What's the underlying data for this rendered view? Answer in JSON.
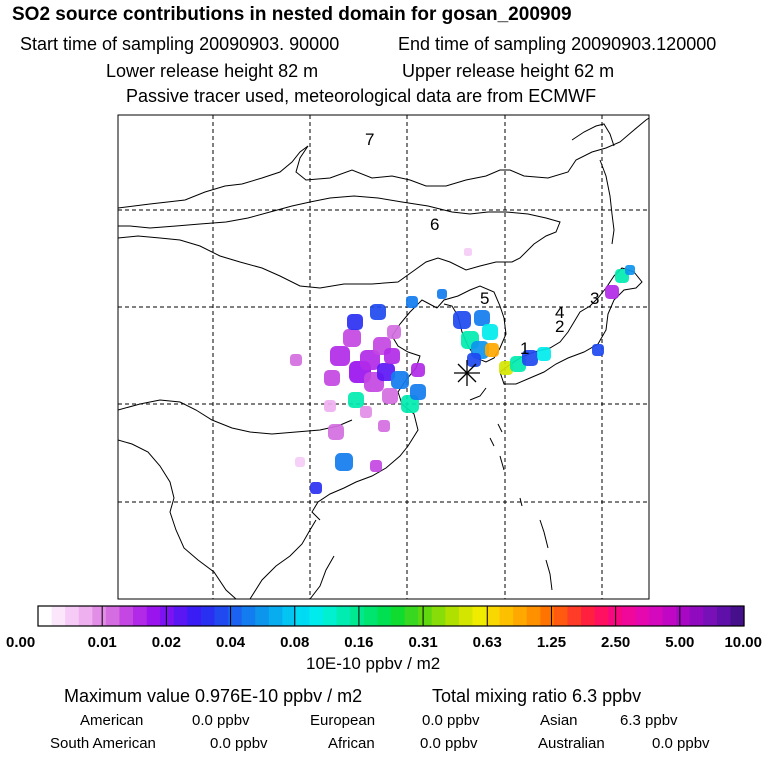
{
  "header": {
    "title": "SO2 source contributions in nested domain for gosan_200909",
    "start_time": "Start time of sampling 20090903. 90000",
    "end_time": "End time of sampling 20090903.120000",
    "lower_release": "Lower release height   82 m",
    "upper_release": "Upper release height   62 m",
    "tracer_note": "Passive tracer used, meteorological data are from ECMWF"
  },
  "map": {
    "region_labels": [
      "7",
      "6",
      "5",
      "4",
      "2",
      "3",
      "1"
    ],
    "receptor_marker": "asterisk"
  },
  "colorbar": {
    "tick_labels": [
      "0.00",
      "0.01",
      "0.02",
      "0.04",
      "0.08",
      "0.16",
      "0.31",
      "0.63",
      "1.25",
      "2.50",
      "5.00",
      "10.00"
    ],
    "colors": [
      "#ffffff",
      "#fbe6fb",
      "#f6ccf6",
      "#efb0f0",
      "#e28ee6",
      "#d46ee0",
      "#c447e3",
      "#b22ae8",
      "#9a14ee",
      "#7d12f2",
      "#5b16f4",
      "#3a1cf4",
      "#2a30f2",
      "#2049f0",
      "#1a62ef",
      "#137cee",
      "#0d95ee",
      "#08adf0",
      "#04c4f2",
      "#00dbf4",
      "#00ecec",
      "#00f0d0",
      "#00ecb0",
      "#00e890",
      "#00e470",
      "#00e050",
      "#10dc30",
      "#38d820",
      "#60d810",
      "#88dc08",
      "#b0e000",
      "#d4e600",
      "#f0ec00",
      "#f8d800",
      "#fcc000",
      "#ffa800",
      "#ff9000",
      "#ff7400",
      "#ff5a10",
      "#ff3c28",
      "#ff2040",
      "#ff1060",
      "#f80880",
      "#f0089a",
      "#e408ae",
      "#d408bc",
      "#c008c4",
      "#a808c4",
      "#900ac0",
      "#7810b8",
      "#5e10a8",
      "#46108c"
    ],
    "units": "10E-10 ppbv / m2"
  },
  "summary": {
    "max_value": "Maximum value  0.976E-10 ppbv / m2",
    "total_mixing": "Total mixing ratio       6.3 ppbv",
    "rows": [
      [
        {
          "label": "American",
          "value": "0.0 ppbv"
        },
        {
          "label": "European",
          "value": "0.0 ppbv"
        },
        {
          "label": "Asian",
          "value": "6.3 ppbv"
        }
      ],
      [
        {
          "label": "South American",
          "value": "0.0 ppbv"
        },
        {
          "label": "African",
          "value": "0.0 ppbv"
        },
        {
          "label": "Australian",
          "value": "0.0 ppbv"
        }
      ]
    ]
  }
}
